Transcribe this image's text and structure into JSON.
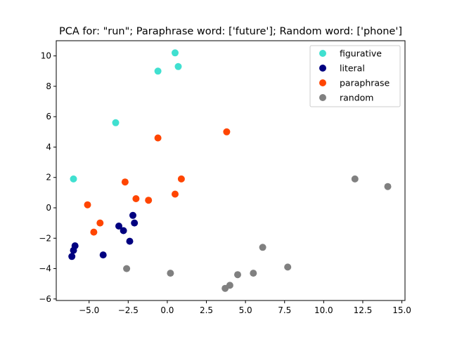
{
  "chart_data": {
    "type": "scatter",
    "title": "PCA for: \"run\"; Paraphrase word: ['future']; Random word: ['phone']",
    "xlabel": "",
    "ylabel": "",
    "xlim": [
      -7.1,
      15.2
    ],
    "ylim": [
      -6.1,
      11.0
    ],
    "xticks": [
      -5.0,
      -2.5,
      0.0,
      2.5,
      5.0,
      7.5,
      10.0,
      12.5,
      15.0
    ],
    "xtick_labels": [
      "−5.0",
      "−2.5",
      "0.0",
      "2.5",
      "5.0",
      "7.5",
      "10.0",
      "12.5",
      "15.0"
    ],
    "yticks": [
      -6,
      -4,
      -2,
      0,
      2,
      4,
      6,
      8,
      10
    ],
    "ytick_labels": [
      "−6",
      "−4",
      "−2",
      "0",
      "2",
      "4",
      "6",
      "8",
      "10"
    ],
    "grid": false,
    "legend_position": "top-right",
    "series": [
      {
        "name": "figurative",
        "color": "#40e0d0",
        "points": [
          [
            0.5,
            10.2
          ],
          [
            -0.6,
            9.0
          ],
          [
            0.7,
            9.3
          ],
          [
            -3.3,
            5.6
          ],
          [
            -6.0,
            1.9
          ]
        ]
      },
      {
        "name": "literal",
        "color": "#000080",
        "points": [
          [
            -2.2,
            -0.5
          ],
          [
            -2.1,
            -1.0
          ],
          [
            -3.1,
            -1.2
          ],
          [
            -2.8,
            -1.5
          ],
          [
            -2.4,
            -2.2
          ],
          [
            -5.9,
            -2.5
          ],
          [
            -6.0,
            -2.8
          ],
          [
            -6.1,
            -3.2
          ],
          [
            -4.1,
            -3.1
          ]
        ]
      },
      {
        "name": "paraphrase",
        "color": "#ff4500",
        "points": [
          [
            3.8,
            5.0
          ],
          [
            -0.6,
            4.6
          ],
          [
            -2.7,
            1.7
          ],
          [
            0.9,
            1.9
          ],
          [
            0.5,
            0.9
          ],
          [
            -2.0,
            0.6
          ],
          [
            -1.2,
            0.5
          ],
          [
            -5.1,
            0.2
          ],
          [
            -4.3,
            -1.0
          ],
          [
            -4.7,
            -1.6
          ]
        ]
      },
      {
        "name": "random",
        "color": "#808080",
        "points": [
          [
            12.0,
            1.9
          ],
          [
            14.1,
            1.4
          ],
          [
            6.1,
            -2.6
          ],
          [
            7.7,
            -3.9
          ],
          [
            -2.6,
            -4.0
          ],
          [
            0.2,
            -4.3
          ],
          [
            4.5,
            -4.4
          ],
          [
            5.5,
            -4.3
          ],
          [
            4.0,
            -5.1
          ],
          [
            3.7,
            -5.3
          ]
        ]
      }
    ]
  }
}
